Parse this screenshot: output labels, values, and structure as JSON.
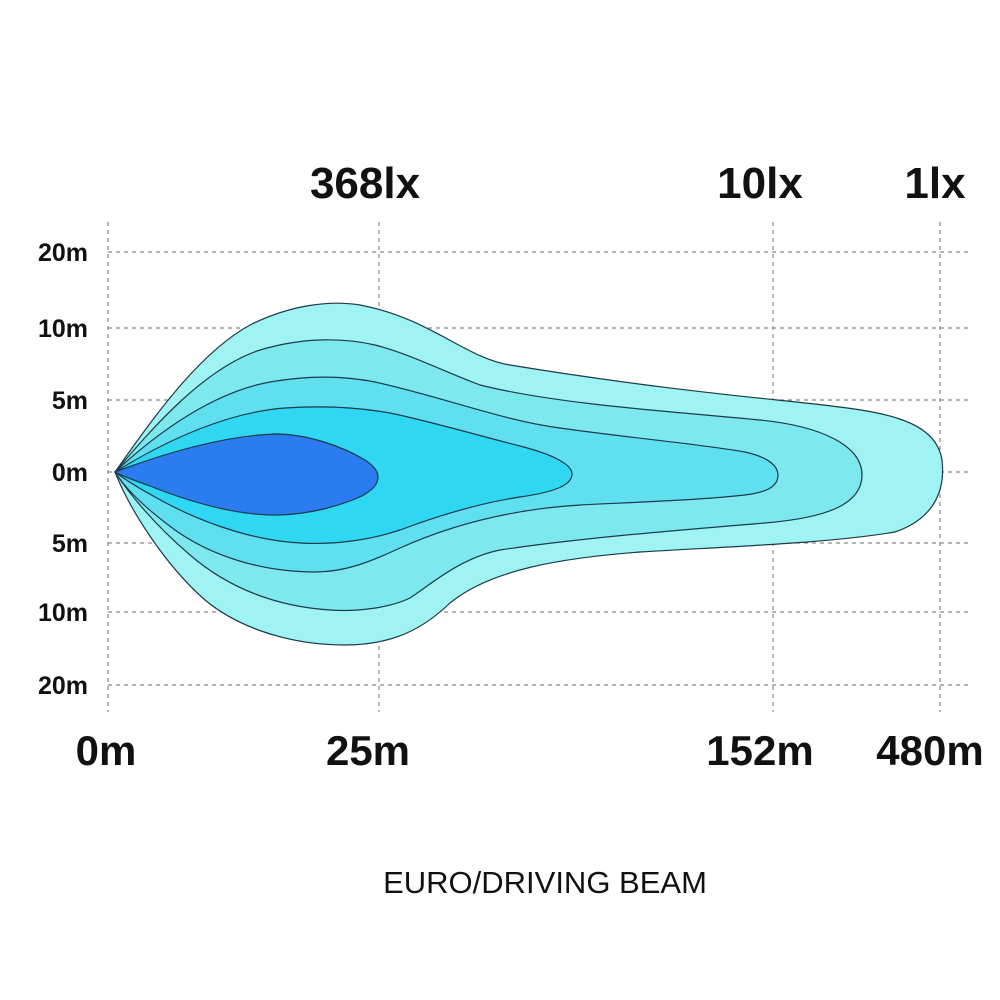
{
  "lux_labels": {
    "near": "368lx",
    "mid": "10lx",
    "far": "1lx"
  },
  "distance_labels": {
    "origin": "0m",
    "near": "25m",
    "mid": "152m",
    "far": "480m"
  },
  "side_labels": {
    "top_20": "20m",
    "top_10": "10m",
    "top_5": "5m",
    "center": "0m",
    "bottom_5": "5m",
    "bottom_10": "10m",
    "bottom_20": "20m"
  },
  "caption": "EURO/DRIVING BEAM",
  "colors": {
    "zone_outer": "#9ff3f3",
    "zone_2": "#7de9ef",
    "zone_3": "#5fdff0",
    "zone_4": "#2fd7f2",
    "zone_core": "#2a7cf0"
  }
}
